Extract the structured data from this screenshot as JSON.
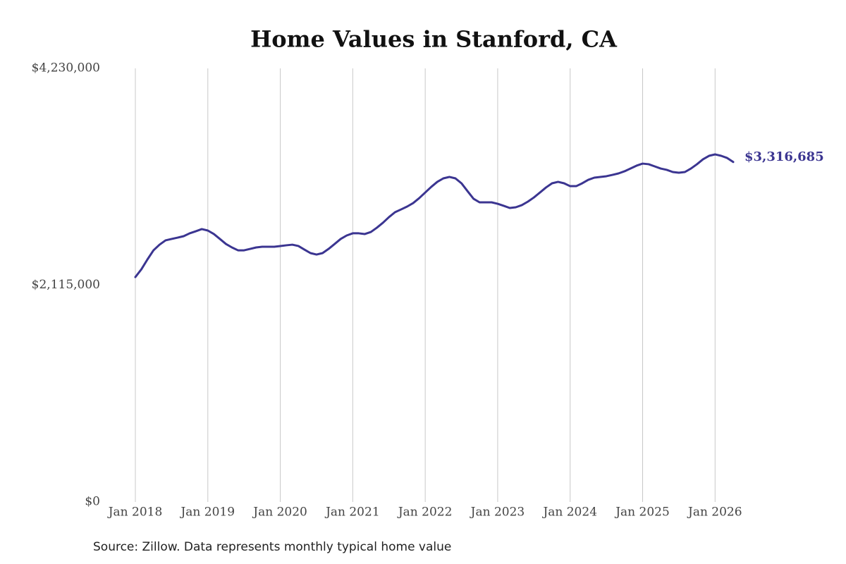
{
  "chart_data": {
    "type": "line",
    "title": "Home Values in Stanford, CA",
    "source": "Source: Zillow. Data represents monthly typical home value",
    "color": "#3b3591",
    "x": [
      "2018-01",
      "2018-02",
      "2018-03",
      "2018-04",
      "2018-05",
      "2018-06",
      "2018-07",
      "2018-08",
      "2018-09",
      "2018-10",
      "2018-11",
      "2018-12",
      "2019-01",
      "2019-02",
      "2019-03",
      "2019-04",
      "2019-05",
      "2019-06",
      "2019-07",
      "2019-08",
      "2019-09",
      "2019-10",
      "2019-11",
      "2019-12",
      "2020-01",
      "2020-02",
      "2020-03",
      "2020-04",
      "2020-05",
      "2020-06",
      "2020-07",
      "2020-08",
      "2020-09",
      "2020-10",
      "2020-11",
      "2020-12",
      "2021-01",
      "2021-02",
      "2021-03",
      "2021-04",
      "2021-05",
      "2021-06",
      "2021-07",
      "2021-08",
      "2021-09",
      "2021-10",
      "2021-11",
      "2021-12",
      "2022-01",
      "2022-02",
      "2022-03",
      "2022-04",
      "2022-05",
      "2022-06",
      "2022-07",
      "2022-08",
      "2022-09",
      "2022-10",
      "2022-11",
      "2022-12",
      "2023-01",
      "2023-02",
      "2023-03",
      "2023-04",
      "2023-05",
      "2023-06",
      "2023-07",
      "2023-08",
      "2023-09",
      "2023-10",
      "2023-11",
      "2023-12",
      "2024-01",
      "2024-02",
      "2024-03",
      "2024-04",
      "2024-05",
      "2024-06",
      "2024-07",
      "2024-08",
      "2024-09",
      "2024-10",
      "2024-11",
      "2024-12",
      "2025-01",
      "2025-02",
      "2025-03",
      "2025-04",
      "2025-05",
      "2025-06",
      "2025-07",
      "2025-08",
      "2025-09",
      "2025-10",
      "2025-11",
      "2025-12",
      "2026-01",
      "2026-02",
      "2026-03",
      "2026-04"
    ],
    "values": [
      2194000,
      2270000,
      2366000,
      2455000,
      2510000,
      2552000,
      2566000,
      2579000,
      2593000,
      2621000,
      2641000,
      2662000,
      2648000,
      2614000,
      2566000,
      2517000,
      2483000,
      2455000,
      2455000,
      2469000,
      2483000,
      2490000,
      2490000,
      2490000,
      2497000,
      2504000,
      2510000,
      2497000,
      2462000,
      2428000,
      2414000,
      2428000,
      2469000,
      2517000,
      2566000,
      2600000,
      2621000,
      2621000,
      2614000,
      2634000,
      2676000,
      2724000,
      2779000,
      2827000,
      2854000,
      2882000,
      2916000,
      2964000,
      3019000,
      3074000,
      3123000,
      3157000,
      3171000,
      3157000,
      3109000,
      3033000,
      2958000,
      2923000,
      2923000,
      2923000,
      2909000,
      2889000,
      2868000,
      2875000,
      2896000,
      2930000,
      2971000,
      3019000,
      3068000,
      3109000,
      3123000,
      3109000,
      3081000,
      3081000,
      3109000,
      3143000,
      3164000,
      3171000,
      3178000,
      3191000,
      3205000,
      3226000,
      3253000,
      3281000,
      3301000,
      3295000,
      3274000,
      3253000,
      3240000,
      3219000,
      3212000,
      3219000,
      3253000,
      3295000,
      3343000,
      3377000,
      3391000,
      3377000,
      3356000,
      3316685
    ],
    "value_labels": [
      null,
      null,
      null,
      null,
      null,
      null,
      null,
      null,
      null,
      null,
      null,
      null,
      null,
      null,
      null,
      null,
      null,
      null,
      null,
      null,
      null,
      null,
      null,
      null,
      null,
      null,
      null,
      null,
      null,
      null,
      null,
      null,
      null,
      null,
      null,
      null,
      null,
      null,
      null,
      null,
      null,
      null,
      null,
      null,
      null,
      null,
      null,
      null,
      null,
      null,
      null,
      null,
      null,
      null,
      null,
      null,
      null,
      null,
      null,
      null,
      null,
      null,
      null,
      null,
      null,
      null,
      null,
      null,
      null,
      null,
      null,
      null,
      null,
      null,
      null,
      null,
      null,
      null,
      null,
      null,
      null,
      null,
      null,
      null,
      null,
      null,
      null,
      null,
      null,
      null,
      null,
      null,
      null,
      null,
      null,
      null,
      null,
      null,
      null,
      "$3,316,685"
    ],
    "xlim": [
      "2018-01",
      "2026-04"
    ],
    "xticks": [
      {
        "value": "2018-01",
        "label": "Jan 2018"
      },
      {
        "value": "2019-01",
        "label": "Jan 2019"
      },
      {
        "value": "2020-01",
        "label": "Jan 2020"
      },
      {
        "value": "2021-01",
        "label": "Jan 2021"
      },
      {
        "value": "2022-01",
        "label": "Jan 2022"
      },
      {
        "value": "2023-01",
        "label": "Jan 2023"
      },
      {
        "value": "2024-01",
        "label": "Jan 2024"
      },
      {
        "value": "2025-01",
        "label": "Jan 2025"
      },
      {
        "value": "2026-01",
        "label": "Jan 2026"
      }
    ],
    "ylim": [
      0,
      4230000
    ],
    "yticks": [
      {
        "value": 0,
        "label": "$0"
      },
      {
        "value": 2115000,
        "label": "$2,115,000"
      },
      {
        "value": 4230000,
        "label": "$4,230,000"
      }
    ],
    "grid": "x"
  }
}
